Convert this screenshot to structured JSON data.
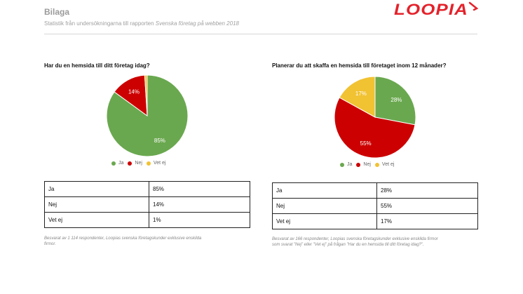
{
  "header": {
    "title": "Bilaga",
    "subtitle_prefix": "Statistik från undersökningarna till rapporten ",
    "subtitle_italic": "Svenska företag på webben 2018",
    "logo_text": "LOOPIA"
  },
  "colors": {
    "ja": "#6aa84f",
    "nej": "#cc0000",
    "vet_ej": "#f1c232",
    "logo": "#e4222b"
  },
  "chart_data": [
    {
      "type": "pie",
      "title": "Har du en hemsida till ditt företag idag?",
      "labels": [
        "Ja",
        "Nej",
        "Vet ej"
      ],
      "values": [
        85,
        14,
        1
      ],
      "slice_labels": [
        "85%",
        "14%",
        ""
      ],
      "legend": "bottom"
    },
    {
      "type": "pie",
      "title": "Planerar du att skaffa en hemsida till företaget inom 12 månader?",
      "labels": [
        "Ja",
        "Nej",
        "Vet ej"
      ],
      "values": [
        28,
        55,
        17
      ],
      "slice_labels": [
        "28%",
        "55%",
        "17%"
      ],
      "legend": "bottom"
    }
  ],
  "tables": [
    {
      "rows": [
        {
          "label": "Ja",
          "value": "85%"
        },
        {
          "label": "Nej",
          "value": "14%"
        },
        {
          "label": "Vet ej",
          "value": "1%"
        }
      ]
    },
    {
      "rows": [
        {
          "label": "Ja",
          "value": "28%"
        },
        {
          "label": "Nej",
          "value": "55%"
        },
        {
          "label": "Vet ej",
          "value": "17%"
        }
      ]
    }
  ],
  "notes": [
    [
      "Besvarat av 1 114 respondenter, Loopias svenska företagskunder exklusive enskilda",
      "firmor."
    ],
    [
      "Besvarat av 166 respondenter, Loopias svenska företagskunder exklusive enskilda firmor",
      "som svarat ”Nej” eller ”Vet ej” på frågan ”Har du en hemsida till ditt företag idag?”."
    ]
  ]
}
